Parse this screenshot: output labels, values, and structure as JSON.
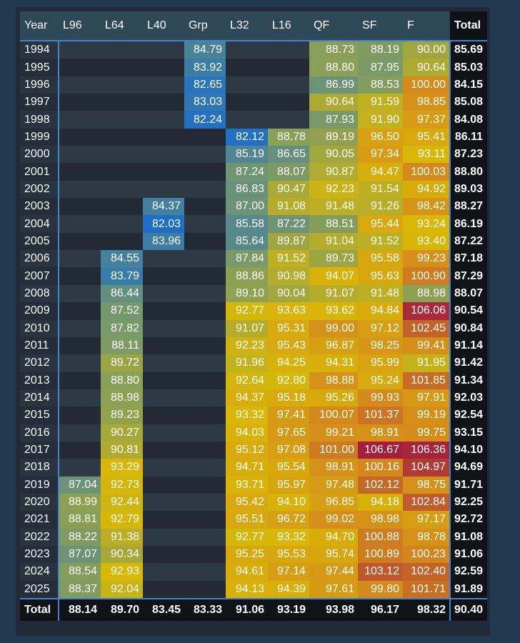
{
  "chart_data": {
    "type": "heatmap",
    "title": "",
    "row_header": "Year",
    "columns": [
      "L96",
      "L64",
      "L40",
      "Grp",
      "L32",
      "L16",
      "QF",
      "SF",
      "F"
    ],
    "total_label": "Total",
    "colors": {
      "low": "#1f6fc4",
      "mid_low": "#7b9a66",
      "mid": "#d9b806",
      "high": "#d58a1c",
      "peak": "#a51f3c"
    },
    "rows": [
      {
        "year": "1994",
        "values": [
          null,
          null,
          null,
          84.79,
          null,
          null,
          88.73,
          88.19,
          90.0
        ],
        "total": "85.69"
      },
      {
        "year": "1995",
        "values": [
          null,
          null,
          null,
          83.92,
          null,
          null,
          88.8,
          87.95,
          90.64
        ],
        "total": "85.03"
      },
      {
        "year": "1996",
        "values": [
          null,
          null,
          null,
          82.65,
          null,
          null,
          86.99,
          88.53,
          100.0
        ],
        "total": "84.15"
      },
      {
        "year": "1997",
        "values": [
          null,
          null,
          null,
          83.03,
          null,
          null,
          90.64,
          91.59,
          98.85
        ],
        "total": "85.08"
      },
      {
        "year": "1998",
        "values": [
          null,
          null,
          null,
          82.24,
          null,
          null,
          87.93,
          91.9,
          97.37
        ],
        "total": "84.08"
      },
      {
        "year": "1999",
        "values": [
          null,
          null,
          null,
          null,
          82.12,
          88.78,
          89.19,
          96.5,
          95.41
        ],
        "total": "86.11"
      },
      {
        "year": "2000",
        "values": [
          null,
          null,
          null,
          null,
          85.19,
          86.65,
          90.05,
          97.34,
          93.11
        ],
        "total": "87.23"
      },
      {
        "year": "2001",
        "values": [
          null,
          null,
          null,
          null,
          87.24,
          88.07,
          90.87,
          94.47,
          100.03
        ],
        "total": "88.80"
      },
      {
        "year": "2002",
        "values": [
          null,
          null,
          null,
          null,
          86.83,
          90.47,
          92.23,
          91.54,
          94.92
        ],
        "total": "89.03"
      },
      {
        "year": "2003",
        "values": [
          null,
          null,
          84.37,
          null,
          87.0,
          91.08,
          91.48,
          91.26,
          98.42
        ],
        "total": "88.27"
      },
      {
        "year": "2004",
        "values": [
          null,
          null,
          82.03,
          null,
          85.58,
          87.22,
          88.51,
          95.44,
          93.24
        ],
        "total": "86.19"
      },
      {
        "year": "2005",
        "values": [
          null,
          null,
          83.96,
          null,
          85.64,
          89.87,
          91.04,
          91.52,
          93.4
        ],
        "total": "87.22"
      },
      {
        "year": "2006",
        "values": [
          null,
          84.55,
          null,
          null,
          87.84,
          91.52,
          89.73,
          95.58,
          99.23
        ],
        "total": "87.18"
      },
      {
        "year": "2007",
        "values": [
          null,
          83.79,
          null,
          null,
          88.86,
          90.98,
          94.07,
          95.63,
          100.9
        ],
        "total": "87.29"
      },
      {
        "year": "2008",
        "values": [
          null,
          86.44,
          null,
          null,
          89.1,
          90.04,
          91.07,
          91.48,
          88.98
        ],
        "total": "88.07"
      },
      {
        "year": "2009",
        "values": [
          null,
          87.52,
          null,
          null,
          92.77,
          93.63,
          93.62,
          94.84,
          106.06
        ],
        "total": "90.54"
      },
      {
        "year": "2010",
        "values": [
          null,
          87.82,
          null,
          null,
          91.07,
          95.31,
          99.0,
          97.12,
          102.45
        ],
        "total": "90.84"
      },
      {
        "year": "2011",
        "values": [
          null,
          88.11,
          null,
          null,
          92.23,
          95.43,
          96.87,
          98.25,
          99.41
        ],
        "total": "91.14"
      },
      {
        "year": "2012",
        "values": [
          null,
          89.72,
          null,
          null,
          91.96,
          94.25,
          94.31,
          95.99,
          91.95
        ],
        "total": "91.42"
      },
      {
        "year": "2013",
        "values": [
          null,
          88.8,
          null,
          null,
          92.64,
          92.8,
          98.88,
          95.24,
          101.85
        ],
        "total": "91.34"
      },
      {
        "year": "2014",
        "values": [
          null,
          88.98,
          null,
          null,
          94.37,
          95.18,
          95.26,
          99.93,
          97.91
        ],
        "total": "92.03"
      },
      {
        "year": "2015",
        "values": [
          null,
          89.23,
          null,
          null,
          93.32,
          97.41,
          100.07,
          101.37,
          99.19
        ],
        "total": "92.54"
      },
      {
        "year": "2016",
        "values": [
          null,
          90.27,
          null,
          null,
          94.03,
          97.65,
          99.21,
          98.91,
          99.75
        ],
        "total": "93.15"
      },
      {
        "year": "2017",
        "values": [
          null,
          90.81,
          null,
          null,
          95.12,
          97.08,
          101.0,
          106.67,
          106.36
        ],
        "total": "94.10"
      },
      {
        "year": "2018",
        "values": [
          null,
          93.29,
          null,
          null,
          94.71,
          95.54,
          98.91,
          100.16,
          104.97
        ],
        "total": "94.69"
      },
      {
        "year": "2019",
        "values": [
          87.04,
          92.73,
          null,
          null,
          93.71,
          95.97,
          97.48,
          102.12,
          98.75
        ],
        "total": "91.71"
      },
      {
        "year": "2020",
        "values": [
          88.99,
          92.44,
          null,
          null,
          95.42,
          94.1,
          96.85,
          94.18,
          102.84
        ],
        "total": "92.25"
      },
      {
        "year": "2021",
        "values": [
          88.81,
          92.79,
          null,
          null,
          95.51,
          96.72,
          99.02,
          98.98,
          97.17
        ],
        "total": "92.72"
      },
      {
        "year": "2022",
        "values": [
          88.22,
          91.38,
          null,
          null,
          92.77,
          93.32,
          94.7,
          100.88,
          98.78
        ],
        "total": "91.08"
      },
      {
        "year": "2023",
        "values": [
          87.07,
          90.34,
          null,
          null,
          95.25,
          95.53,
          95.74,
          100.89,
          100.23
        ],
        "total": "91.06"
      },
      {
        "year": "2024",
        "values": [
          88.54,
          92.93,
          null,
          null,
          94.61,
          97.14,
          97.44,
          103.12,
          102.4
        ],
        "total": "92.59"
      },
      {
        "year": "2025",
        "values": [
          88.37,
          92.04,
          null,
          null,
          94.13,
          94.39,
          97.61,
          99.8,
          101.71
        ],
        "total": "91.89"
      }
    ],
    "footer": {
      "label": "Total",
      "values": [
        "88.14",
        "89.70",
        "83.45",
        "83.33",
        "91.06",
        "93.19",
        "93.98",
        "96.17",
        "98.32"
      ],
      "total": "90.40"
    }
  }
}
